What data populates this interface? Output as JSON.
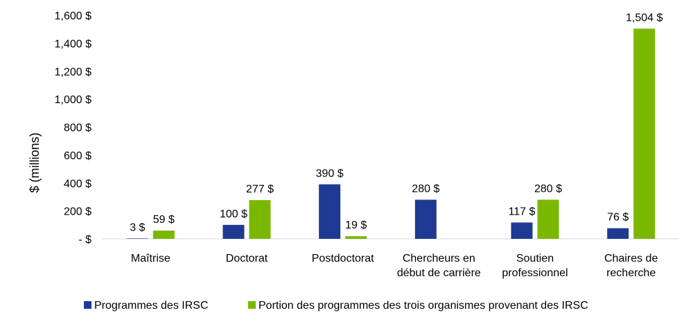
{
  "chart_data": {
    "type": "bar",
    "categories": [
      [
        "Maîtrise"
      ],
      [
        "Doctorat"
      ],
      [
        "Postdoctorat"
      ],
      [
        "Chercheurs en",
        "début de carrière"
      ],
      [
        "Soutien",
        "professionnel"
      ],
      [
        "Chaires de",
        "recherche"
      ]
    ],
    "series": [
      {
        "name": "Programmes des IRSC",
        "color": "#1f3a93",
        "values": [
          3,
          100,
          390,
          280,
          117,
          76
        ],
        "labels": [
          "3 $",
          "100 $",
          "390 $",
          "280 $",
          "117 $",
          "76 $"
        ]
      },
      {
        "name": "Portion des programmes des trois organismes provenant des IRSC",
        "color": "#7ab800",
        "values": [
          59,
          277,
          19,
          null,
          280,
          1504
        ],
        "labels": [
          "59 $",
          "277 $",
          "19 $",
          "",
          "280 $",
          "1,504 $"
        ]
      }
    ],
    "ylabel": "$ (millions)",
    "ylim": [
      0,
      1600
    ],
    "yticks": [
      0,
      200,
      400,
      600,
      800,
      1000,
      1200,
      1400,
      1600
    ],
    "ytick_labels": [
      "- $",
      "200 $",
      "400 $",
      "600 $",
      "800 $",
      "1,000 $",
      "1,200 $",
      "1,400 $",
      "1,600 $"
    ],
    "grid": false,
    "legend_position": "bottom"
  }
}
